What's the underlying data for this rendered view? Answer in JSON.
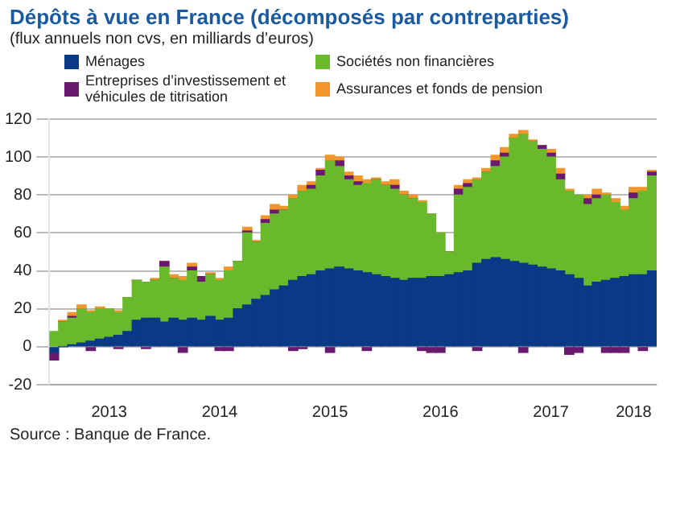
{
  "chart_data": {
    "type": "bar",
    "title": "Dépôts à vue en France (décomposés par contreparties)",
    "subtitle": "(flux annuels non cvs, en milliards d’euros)",
    "categories": [
      null,
      null,
      null,
      null,
      null,
      null,
      "2013",
      null,
      null,
      null,
      null,
      null,
      null,
      null,
      null,
      null,
      null,
      null,
      "2014",
      null,
      null,
      null,
      null,
      null,
      null,
      null,
      null,
      null,
      null,
      null,
      "2015",
      null,
      null,
      null,
      null,
      null,
      null,
      null,
      null,
      null,
      null,
      null,
      "2016",
      null,
      null,
      null,
      null,
      null,
      null,
      null,
      null,
      null,
      null,
      null,
      "2017",
      null,
      null,
      null,
      null,
      null,
      null,
      null,
      null,
      "2018",
      null,
      null
    ],
    "stacked": true,
    "series": [
      {
        "name": "Ménages",
        "color": "#0a3a85",
        "values": [
          -3,
          0,
          1,
          2,
          3,
          4,
          5,
          6,
          8,
          14,
          15,
          15,
          13,
          15,
          14,
          15,
          14,
          16,
          14,
          15,
          20,
          22,
          25,
          27,
          30,
          32,
          35,
          37,
          38,
          40,
          41,
          42,
          41,
          40,
          39,
          38,
          37,
          36,
          35,
          36,
          36,
          37,
          37,
          38,
          39,
          40,
          44,
          46,
          47,
          46,
          45,
          44,
          43,
          42,
          41,
          40,
          38,
          36,
          32,
          34,
          35,
          36,
          37,
          38,
          38,
          40
        ]
      },
      {
        "name": "Sociétés non financières",
        "color": "#6ab82c",
        "values": [
          8,
          13,
          14,
          18,
          15,
          16,
          15,
          12,
          18,
          21,
          19,
          20,
          29,
          21,
          21,
          25,
          20,
          22,
          21,
          25,
          25,
          38,
          30,
          38,
          40,
          40,
          43,
          45,
          45,
          50,
          57,
          53,
          47,
          45,
          47,
          50,
          48,
          47,
          45,
          42,
          40,
          33,
          23,
          12,
          41,
          44,
          44,
          46,
          48,
          54,
          65,
          68,
          65,
          62,
          59,
          48,
          44,
          44,
          43,
          44,
          45,
          40,
          35,
          40,
          44,
          50
        ]
      },
      {
        "name": "Entreprises d’investissement et véhicules de titrisation",
        "color": "#6a1a6e",
        "values": [
          -4,
          0,
          1,
          0,
          -2,
          0,
          0,
          -1,
          0,
          0,
          -1,
          0,
          3,
          0,
          -3,
          2,
          3,
          0,
          -2,
          -2,
          0,
          1,
          0,
          2,
          2,
          0,
          -2,
          -1,
          2,
          3,
          -3,
          3,
          2,
          2,
          -2,
          0,
          0,
          2,
          0,
          0,
          -2,
          -3,
          -3,
          0,
          3,
          2,
          -2,
          0,
          3,
          2,
          0,
          -3,
          0,
          2,
          2,
          3,
          -4,
          -3,
          3,
          2,
          -3,
          -3,
          -3,
          3,
          -2,
          2
        ]
      },
      {
        "name": "Assurances et fonds de pension",
        "color": "#f0962a",
        "values": [
          0,
          1,
          2,
          2,
          1,
          1,
          0,
          1,
          0,
          0,
          0,
          1,
          0,
          2,
          2,
          2,
          0,
          1,
          1,
          2,
          0,
          2,
          1,
          2,
          3,
          2,
          2,
          3,
          2,
          1,
          3,
          2,
          2,
          3,
          2,
          1,
          2,
          3,
          2,
          2,
          1,
          0,
          0,
          0,
          2,
          2,
          1,
          2,
          3,
          3,
          2,
          2,
          1,
          0,
          2,
          3,
          1,
          0,
          2,
          3,
          1,
          2,
          2,
          3,
          2,
          1
        ]
      }
    ],
    "ylim": [
      -20,
      120
    ],
    "yticks": [
      -20,
      0,
      20,
      40,
      60,
      80,
      100,
      120
    ],
    "grid": "y",
    "legend": "top",
    "annotations": [
      "Source : Banque de France."
    ]
  }
}
